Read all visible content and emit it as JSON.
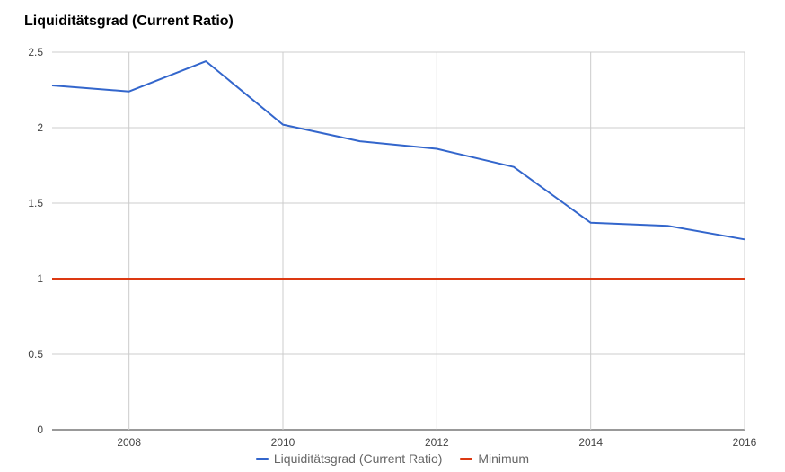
{
  "chart_data": {
    "type": "line",
    "title": "Liquiditätsgrad (Current Ratio)",
    "xlabel": "",
    "ylabel": "",
    "x": [
      2007,
      2008,
      2009,
      2010,
      2011,
      2012,
      2013,
      2014,
      2015,
      2016
    ],
    "x_ticks": [
      "2008",
      "2010",
      "2012",
      "2014",
      "2016"
    ],
    "x_tick_values": [
      2008,
      2010,
      2012,
      2014,
      2016
    ],
    "y_ticks": [
      "0",
      "0.5",
      "1",
      "1.5",
      "2",
      "2.5"
    ],
    "y_tick_values": [
      0,
      0.5,
      1,
      1.5,
      2,
      2.5
    ],
    "xlim": [
      2007,
      2016
    ],
    "ylim": [
      0,
      2.5
    ],
    "grid": true,
    "legend_position": "bottom",
    "series": [
      {
        "name": "Liquiditätsgrad (Current Ratio)",
        "color": "#3366cc",
        "values": [
          2.28,
          2.24,
          2.44,
          2.02,
          1.91,
          1.86,
          1.74,
          1.37,
          1.35,
          1.26
        ]
      },
      {
        "name": "Minimum",
        "color": "#dc3912",
        "values": [
          1,
          1,
          1,
          1,
          1,
          1,
          1,
          1,
          1,
          1
        ]
      }
    ]
  }
}
